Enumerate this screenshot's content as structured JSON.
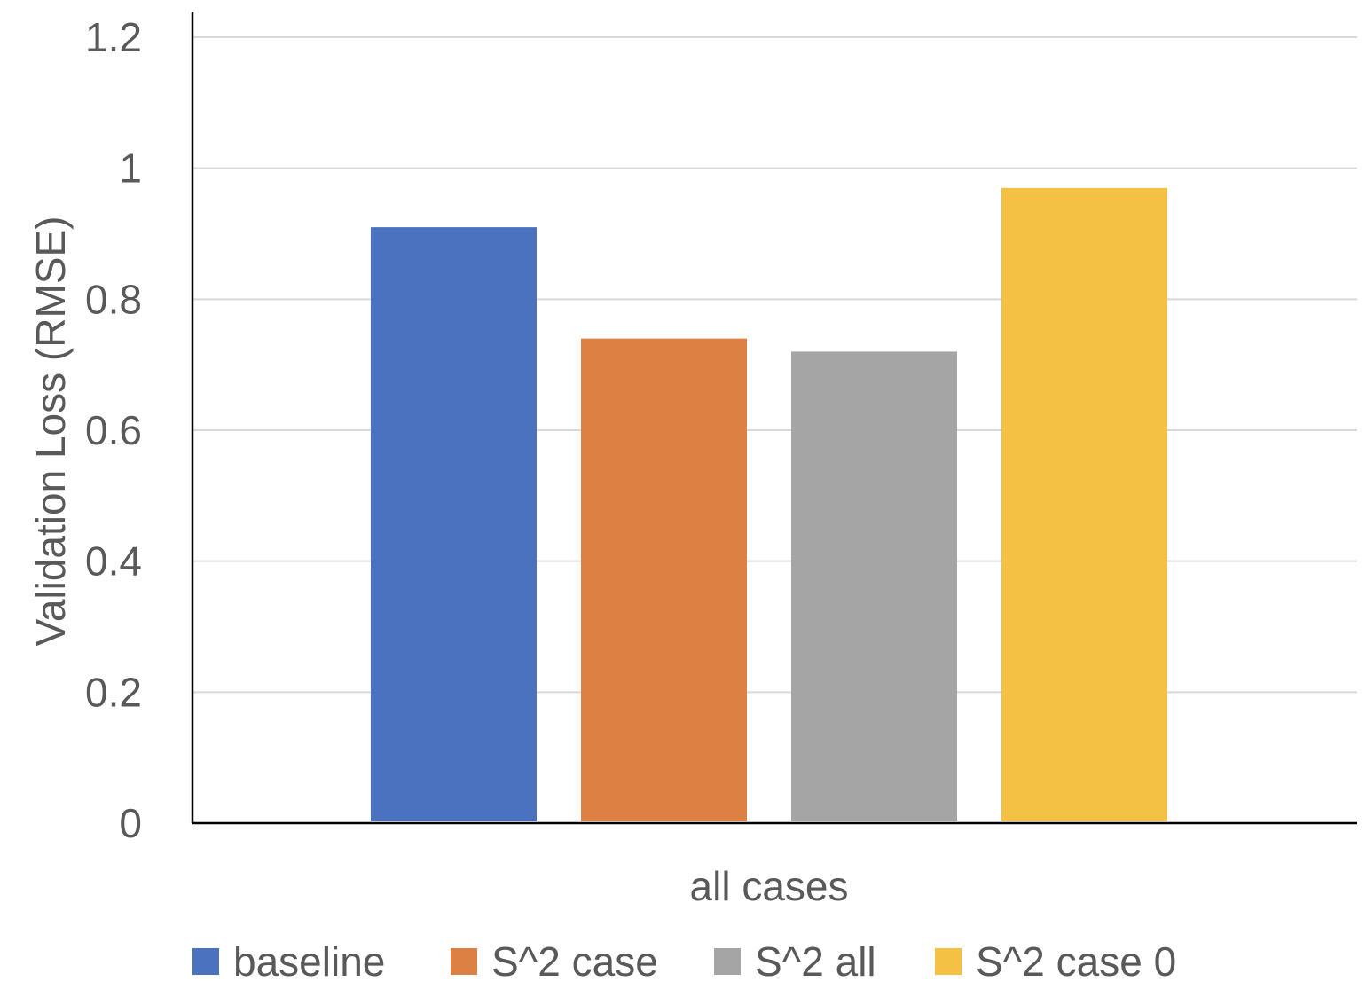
{
  "chart_data": {
    "type": "bar",
    "title": "",
    "xlabel": "",
    "ylabel": "Validation Loss (RMSE)",
    "categories": [
      "all cases"
    ],
    "series": [
      {
        "name": "baseline",
        "values": [
          0.91
        ],
        "color": "#4a72be"
      },
      {
        "name": "S^2 case",
        "values": [
          0.74
        ],
        "color": "#dd8044"
      },
      {
        "name": "S^2 all",
        "values": [
          0.72
        ],
        "color": "#a5a5a5"
      },
      {
        "name": "S^2 case 0",
        "values": [
          0.97
        ],
        "color": "#f5c145"
      }
    ],
    "ylim": [
      0,
      1.2
    ],
    "yticks": [
      "0",
      "0.2",
      "0.4",
      "0.6",
      "0.8",
      "1",
      "1.2"
    ],
    "grid": true,
    "legend_position": "bottom"
  }
}
